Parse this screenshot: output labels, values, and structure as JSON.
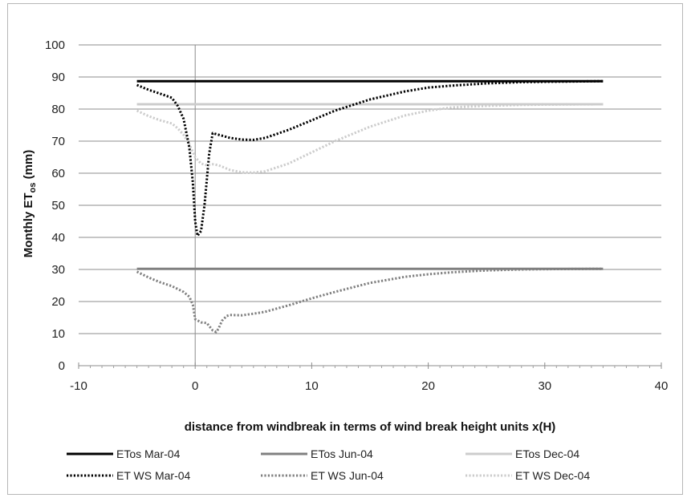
{
  "chart_data": {
    "type": "line",
    "title": "",
    "xlabel": "distance from windbreak in terms of wind break height units x(H)",
    "ylabel_prefix": "Monthly ET",
    "ylabel_sub": "os",
    "ylabel_suffix": " (mm)",
    "xlim": [
      -10,
      40
    ],
    "ylim": [
      0,
      100
    ],
    "x_ticks": [
      -10,
      0,
      10,
      20,
      30,
      40
    ],
    "y_ticks": [
      0,
      10,
      20,
      30,
      40,
      50,
      60,
      70,
      80,
      90,
      100
    ],
    "x_tick_labels": [
      "-10",
      "0",
      "10",
      "20",
      "30",
      "40"
    ],
    "y_tick_labels": [
      "0",
      "10",
      "20",
      "30",
      "40",
      "50",
      "60",
      "70",
      "80",
      "90",
      "100"
    ],
    "grid": "horizontal",
    "legend_position": "bottom",
    "series": [
      {
        "name": "ETos Mar-04",
        "color": "#000000",
        "style": "solid",
        "x": [
          -5,
          35
        ],
        "y": [
          88.7,
          88.7
        ]
      },
      {
        "name": "ETos Jun-04",
        "color": "#808080",
        "style": "solid",
        "x": [
          -5,
          35
        ],
        "y": [
          30.2,
          30.2
        ]
      },
      {
        "name": "ETos Dec-04",
        "color": "#cccccc",
        "style": "solid",
        "x": [
          -5,
          35
        ],
        "y": [
          81.5,
          81.5
        ]
      },
      {
        "name": "ET WS Mar-04",
        "color": "#000000",
        "style": "dotted",
        "x": [
          -5,
          -4,
          -3,
          -2,
          -1.5,
          -1,
          -0.5,
          -0.2,
          0,
          0.2,
          0.5,
          0.8,
          1,
          1.2,
          1.5,
          2,
          3,
          4,
          5,
          6,
          8,
          10,
          12,
          15,
          18,
          20,
          22,
          25,
          28,
          30,
          35
        ],
        "y": [
          87.5,
          86,
          84.8,
          83.5,
          81,
          77,
          68,
          57,
          45,
          40.5,
          42,
          50,
          58,
          66,
          72.5,
          72,
          71,
          70.5,
          70.4,
          71,
          73.5,
          76.5,
          79.5,
          83,
          85.5,
          86.7,
          87.3,
          88,
          88.4,
          88.5,
          88.7
        ]
      },
      {
        "name": "ET WS Jun-04",
        "color": "#808080",
        "style": "dotted",
        "x": [
          -5,
          -4,
          -3,
          -2,
          -1,
          -0.5,
          -0.2,
          0,
          0.5,
          1,
          1.5,
          1.8,
          2,
          2.3,
          2.7,
          3,
          4,
          5,
          6,
          8,
          10,
          12,
          15,
          18,
          20,
          22,
          25,
          28,
          30,
          35
        ],
        "y": [
          29.3,
          27.5,
          26,
          24.8,
          23,
          21.5,
          19,
          14.5,
          13.5,
          13.3,
          11,
          10.5,
          11.5,
          14,
          15.5,
          15.8,
          15.7,
          16.2,
          16.8,
          18.8,
          21,
          23,
          25.8,
          27.7,
          28.5,
          29.1,
          29.7,
          30,
          30.1,
          30.2
        ]
      },
      {
        "name": "ET WS Dec-04",
        "color": "#cccccc",
        "style": "dotted",
        "x": [
          -5,
          -4,
          -3,
          -2,
          -1.5,
          -1,
          -0.5,
          0,
          0.5,
          1,
          1.5,
          2,
          3,
          4,
          5,
          6,
          8,
          10,
          12,
          15,
          18,
          20,
          22,
          25,
          28,
          30,
          35
        ],
        "y": [
          79.5,
          77.8,
          76.5,
          75.5,
          74,
          72,
          69,
          65,
          63,
          62.5,
          62.8,
          62.5,
          61,
          60.3,
          60.2,
          60.6,
          63,
          66.5,
          70,
          74.5,
          78,
          79.5,
          80.5,
          81,
          81.3,
          81.4,
          81.5
        ]
      }
    ]
  }
}
